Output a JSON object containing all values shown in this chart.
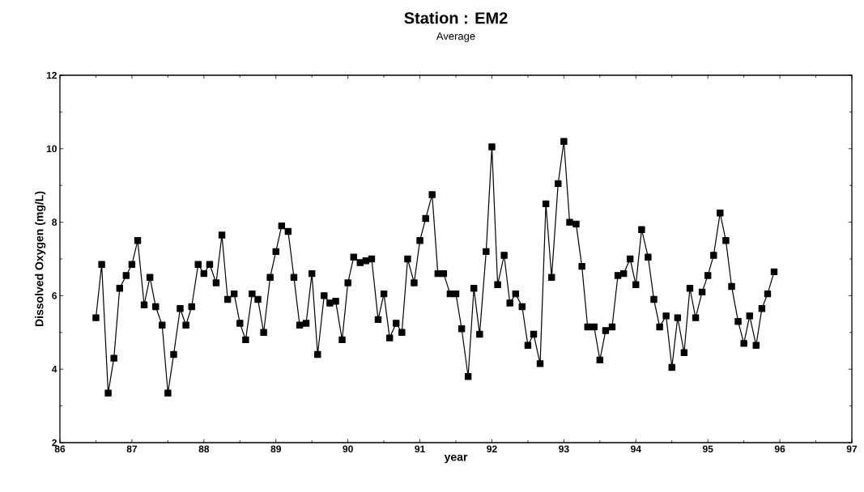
{
  "chart_data": {
    "type": "line",
    "title": "Station : EM2",
    "subtitle": "Average",
    "xlabel": "year",
    "ylabel": "Dissolved Oxygen (mg/L)",
    "xlim": [
      86,
      97
    ],
    "ylim": [
      2,
      12
    ],
    "xticks": [
      86,
      87,
      88,
      89,
      90,
      91,
      92,
      93,
      94,
      95,
      96,
      97
    ],
    "yticks": [
      2,
      4,
      6,
      8,
      10,
      12
    ],
    "marker": "square",
    "line_style": "solid",
    "series": [
      {
        "color": "#000000",
        "x": [
          86.5,
          86.58,
          86.67,
          86.75,
          86.83,
          86.92,
          87.0,
          87.08,
          87.17,
          87.25,
          87.33,
          87.42,
          87.5,
          87.58,
          87.67,
          87.75,
          87.83,
          87.92,
          88.0,
          88.08,
          88.17,
          88.25,
          88.33,
          88.42,
          88.5,
          88.58,
          88.67,
          88.75,
          88.83,
          88.92,
          89.0,
          89.08,
          89.17,
          89.25,
          89.33,
          89.42,
          89.5,
          89.58,
          89.67,
          89.75,
          89.83,
          89.92,
          90.0,
          90.08,
          90.17,
          90.25,
          90.33,
          90.42,
          90.5,
          90.58,
          90.67,
          90.75,
          90.83,
          90.92,
          91.0,
          91.08,
          91.17,
          91.25,
          91.33,
          91.42,
          91.5,
          91.58,
          91.67,
          91.75,
          91.83,
          91.92,
          92.0,
          92.08,
          92.17,
          92.25,
          92.33,
          92.42,
          92.5,
          92.58,
          92.67,
          92.75,
          92.83,
          92.92,
          93.0,
          93.08,
          93.17,
          93.25,
          93.33,
          93.42,
          93.5,
          93.58,
          93.67,
          93.75,
          93.83,
          93.92,
          94.0,
          94.08,
          94.17,
          94.25,
          94.33,
          94.42,
          94.5,
          94.58,
          94.67,
          94.75,
          94.83,
          94.92,
          95.0,
          95.08,
          95.17,
          95.25,
          95.33,
          95.42,
          95.5,
          95.58,
          95.67,
          95.75,
          95.83,
          95.92
        ],
        "values": [
          5.4,
          6.85,
          3.35,
          4.3,
          6.2,
          6.55,
          6.85,
          7.5,
          5.75,
          6.5,
          5.7,
          5.2,
          3.35,
          4.4,
          5.65,
          5.2,
          5.7,
          6.85,
          6.6,
          6.85,
          6.35,
          7.65,
          5.9,
          6.05,
          5.25,
          4.8,
          6.05,
          5.9,
          5.0,
          6.5,
          7.2,
          7.9,
          7.75,
          6.5,
          5.2,
          5.25,
          6.6,
          4.4,
          6.0,
          5.8,
          5.85,
          4.8,
          6.35,
          7.05,
          6.9,
          6.95,
          7.0,
          5.35,
          6.05,
          4.85,
          5.25,
          5.0,
          7.0,
          6.35,
          7.5,
          8.1,
          8.75,
          6.6,
          6.6,
          6.05,
          6.05,
          5.1,
          3.8,
          6.2,
          4.95,
          7.2,
          10.05,
          6.3,
          7.1,
          5.8,
          6.05,
          5.7,
          4.65,
          4.95,
          4.15,
          8.5,
          6.5,
          9.05,
          10.2,
          8.0,
          7.95,
          6.8,
          5.15,
          5.15,
          4.25,
          5.05,
          5.15,
          6.55,
          6.6,
          7.0,
          6.3,
          7.8,
          7.05,
          5.9,
          5.15,
          5.45,
          4.05,
          5.4,
          4.45,
          6.2,
          5.4,
          6.1,
          6.55,
          7.1,
          8.25,
          7.5,
          6.25,
          5.3,
          4.7,
          5.45,
          4.65,
          5.65,
          6.05,
          6.65
        ]
      }
    ]
  }
}
